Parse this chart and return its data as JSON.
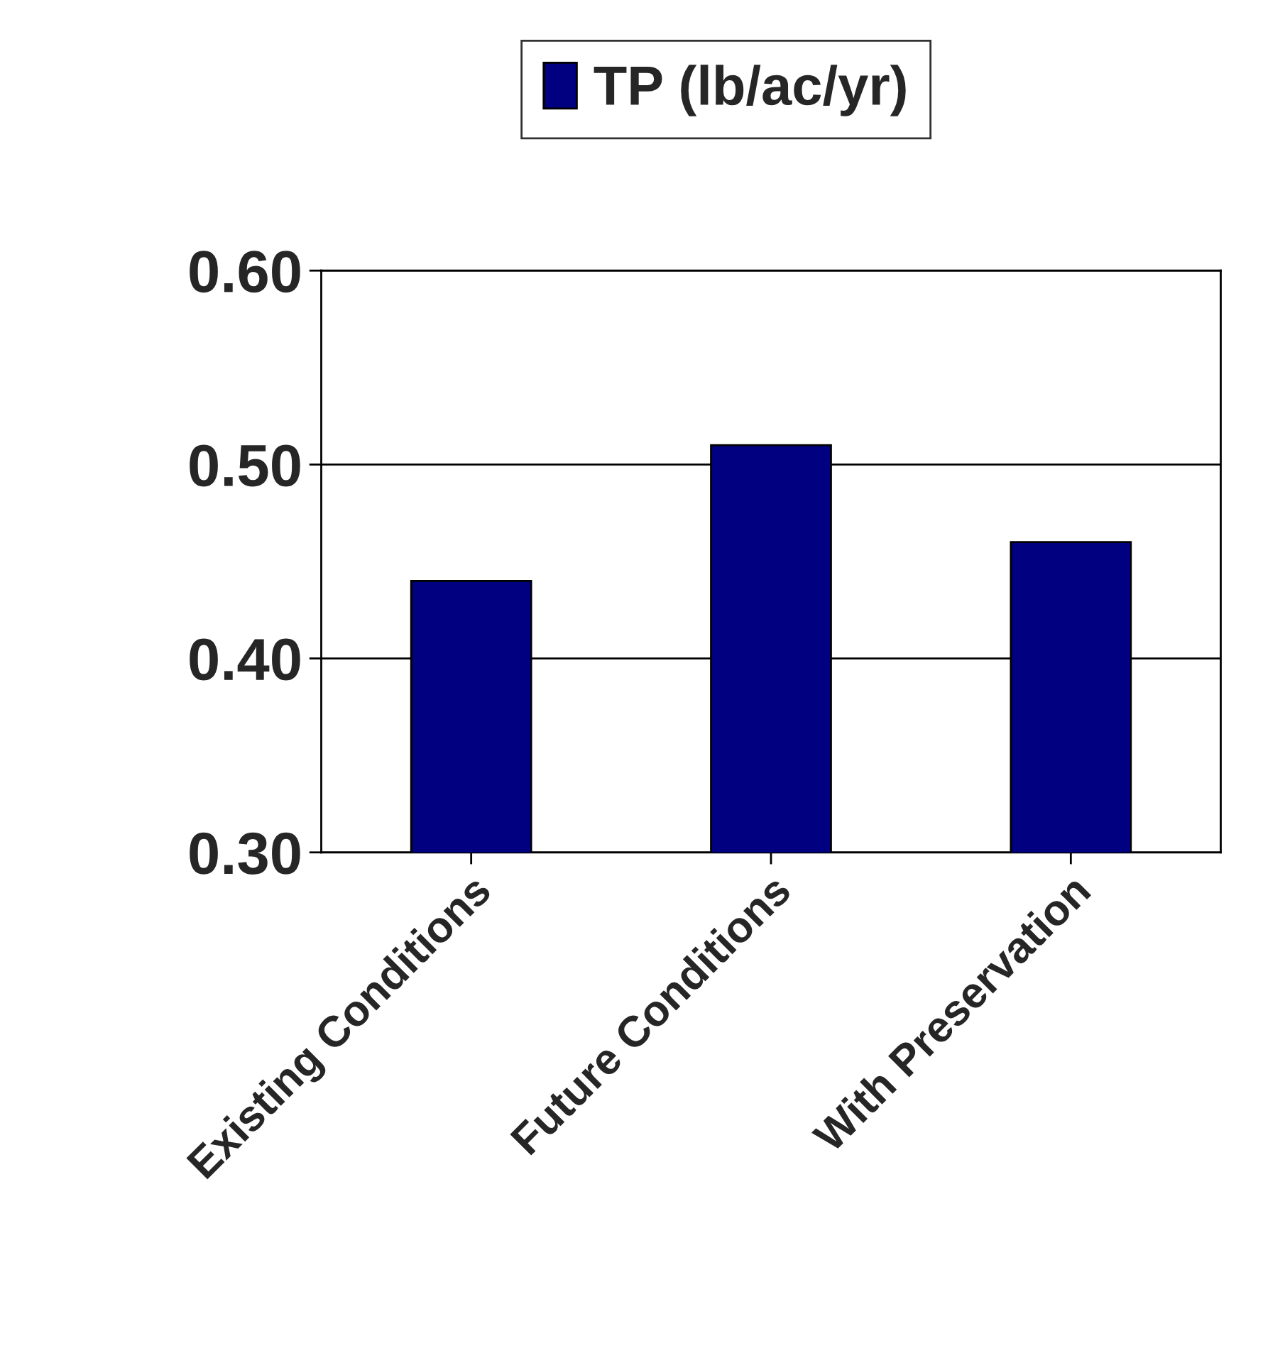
{
  "chart_data": {
    "type": "bar",
    "categories": [
      "Existing Conditions",
      "Future Conditions",
      "With Preservation"
    ],
    "series": [
      {
        "name": "TP (lb/ac/yr)",
        "color": "#000080",
        "values": [
          0.44,
          0.51,
          0.46
        ]
      }
    ],
    "ylim": [
      0.3,
      0.6
    ],
    "yticks": [
      {
        "value": 0.3,
        "label": "0.30"
      },
      {
        "value": 0.4,
        "label": "0.40"
      },
      {
        "value": 0.5,
        "label": "0.50"
      },
      {
        "value": 0.6,
        "label": "0.60"
      }
    ],
    "grid": "y",
    "legend": "top"
  }
}
